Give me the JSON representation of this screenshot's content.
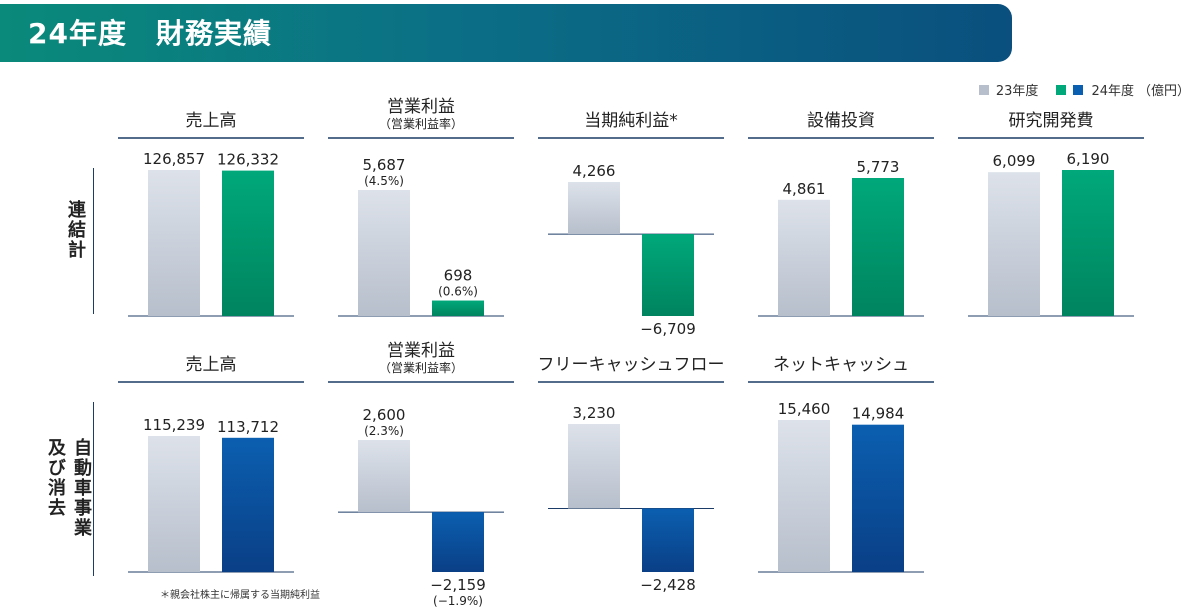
{
  "header": {
    "title": "24年度　財務実績"
  },
  "legend": {
    "prev": "23年度",
    "curr": "24年度",
    "unit": "（億円）"
  },
  "colors": {
    "prev": "#b7bfcc",
    "green": "#00a87a",
    "blue": "#0b5fb0",
    "line": "#1c3b66"
  },
  "rows": [
    {
      "label": "連結計"
    },
    {
      "label": "自動車事業\n及び消去"
    }
  ],
  "footnote": "＊親会社株主に帰属する当期純利益",
  "chart_data": [
    {
      "type": "bar",
      "title": "売上高",
      "subtitle": "",
      "categories": [
        "23年度",
        "24年度"
      ],
      "values": [
        126857,
        126332
      ],
      "labels": [
        "126,857",
        "126,332"
      ],
      "sublabels": [
        "",
        ""
      ]
    },
    {
      "type": "bar",
      "title": "営業利益",
      "subtitle": "（営業利益率）",
      "categories": [
        "23年度",
        "24年度"
      ],
      "values": [
        5687,
        698
      ],
      "labels": [
        "5,687",
        "698"
      ],
      "sublabels": [
        "(4.5%)",
        "(0.6%)"
      ]
    },
    {
      "type": "bar",
      "title": "当期純利益*",
      "subtitle": "",
      "categories": [
        "23年度",
        "24年度"
      ],
      "values": [
        4266,
        -6709
      ],
      "labels": [
        "4,266",
        "−6,709"
      ],
      "sublabels": [
        "",
        ""
      ]
    },
    {
      "type": "bar",
      "title": "設備投資",
      "subtitle": "",
      "categories": [
        "23年度",
        "24年度"
      ],
      "values": [
        4861,
        5773
      ],
      "labels": [
        "4,861",
        "5,773"
      ],
      "sublabels": [
        "",
        ""
      ]
    },
    {
      "type": "bar",
      "title": "研究開発費",
      "subtitle": "",
      "categories": [
        "23年度",
        "24年度"
      ],
      "values": [
        6099,
        6190
      ],
      "labels": [
        "6,099",
        "6,190"
      ],
      "sublabels": [
        "",
        ""
      ]
    },
    {
      "type": "bar",
      "title": "売上高",
      "subtitle": "",
      "categories": [
        "23年度",
        "24年度"
      ],
      "values": [
        115239,
        113712
      ],
      "labels": [
        "115,239",
        "113,712"
      ],
      "sublabels": [
        "",
        ""
      ]
    },
    {
      "type": "bar",
      "title": "営業利益",
      "subtitle": "（営業利益率）",
      "categories": [
        "23年度",
        "24年度"
      ],
      "values": [
        2600,
        -2159
      ],
      "labels": [
        "2,600",
        "−2,159"
      ],
      "sublabels": [
        "(2.3%)",
        "(−1.9%)"
      ]
    },
    {
      "type": "bar",
      "title": "フリーキャッシュフロー",
      "subtitle": "",
      "categories": [
        "23年度",
        "24年度"
      ],
      "values": [
        3230,
        -2428
      ],
      "labels": [
        "3,230",
        "−2,428"
      ],
      "sublabels": [
        "",
        ""
      ]
    },
    {
      "type": "bar",
      "title": "ネットキャッシュ",
      "subtitle": "",
      "categories": [
        "23年度",
        "24年度"
      ],
      "values": [
        15460,
        14984
      ],
      "labels": [
        "15,460",
        "14,984"
      ],
      "sublabels": [
        "",
        ""
      ]
    }
  ]
}
